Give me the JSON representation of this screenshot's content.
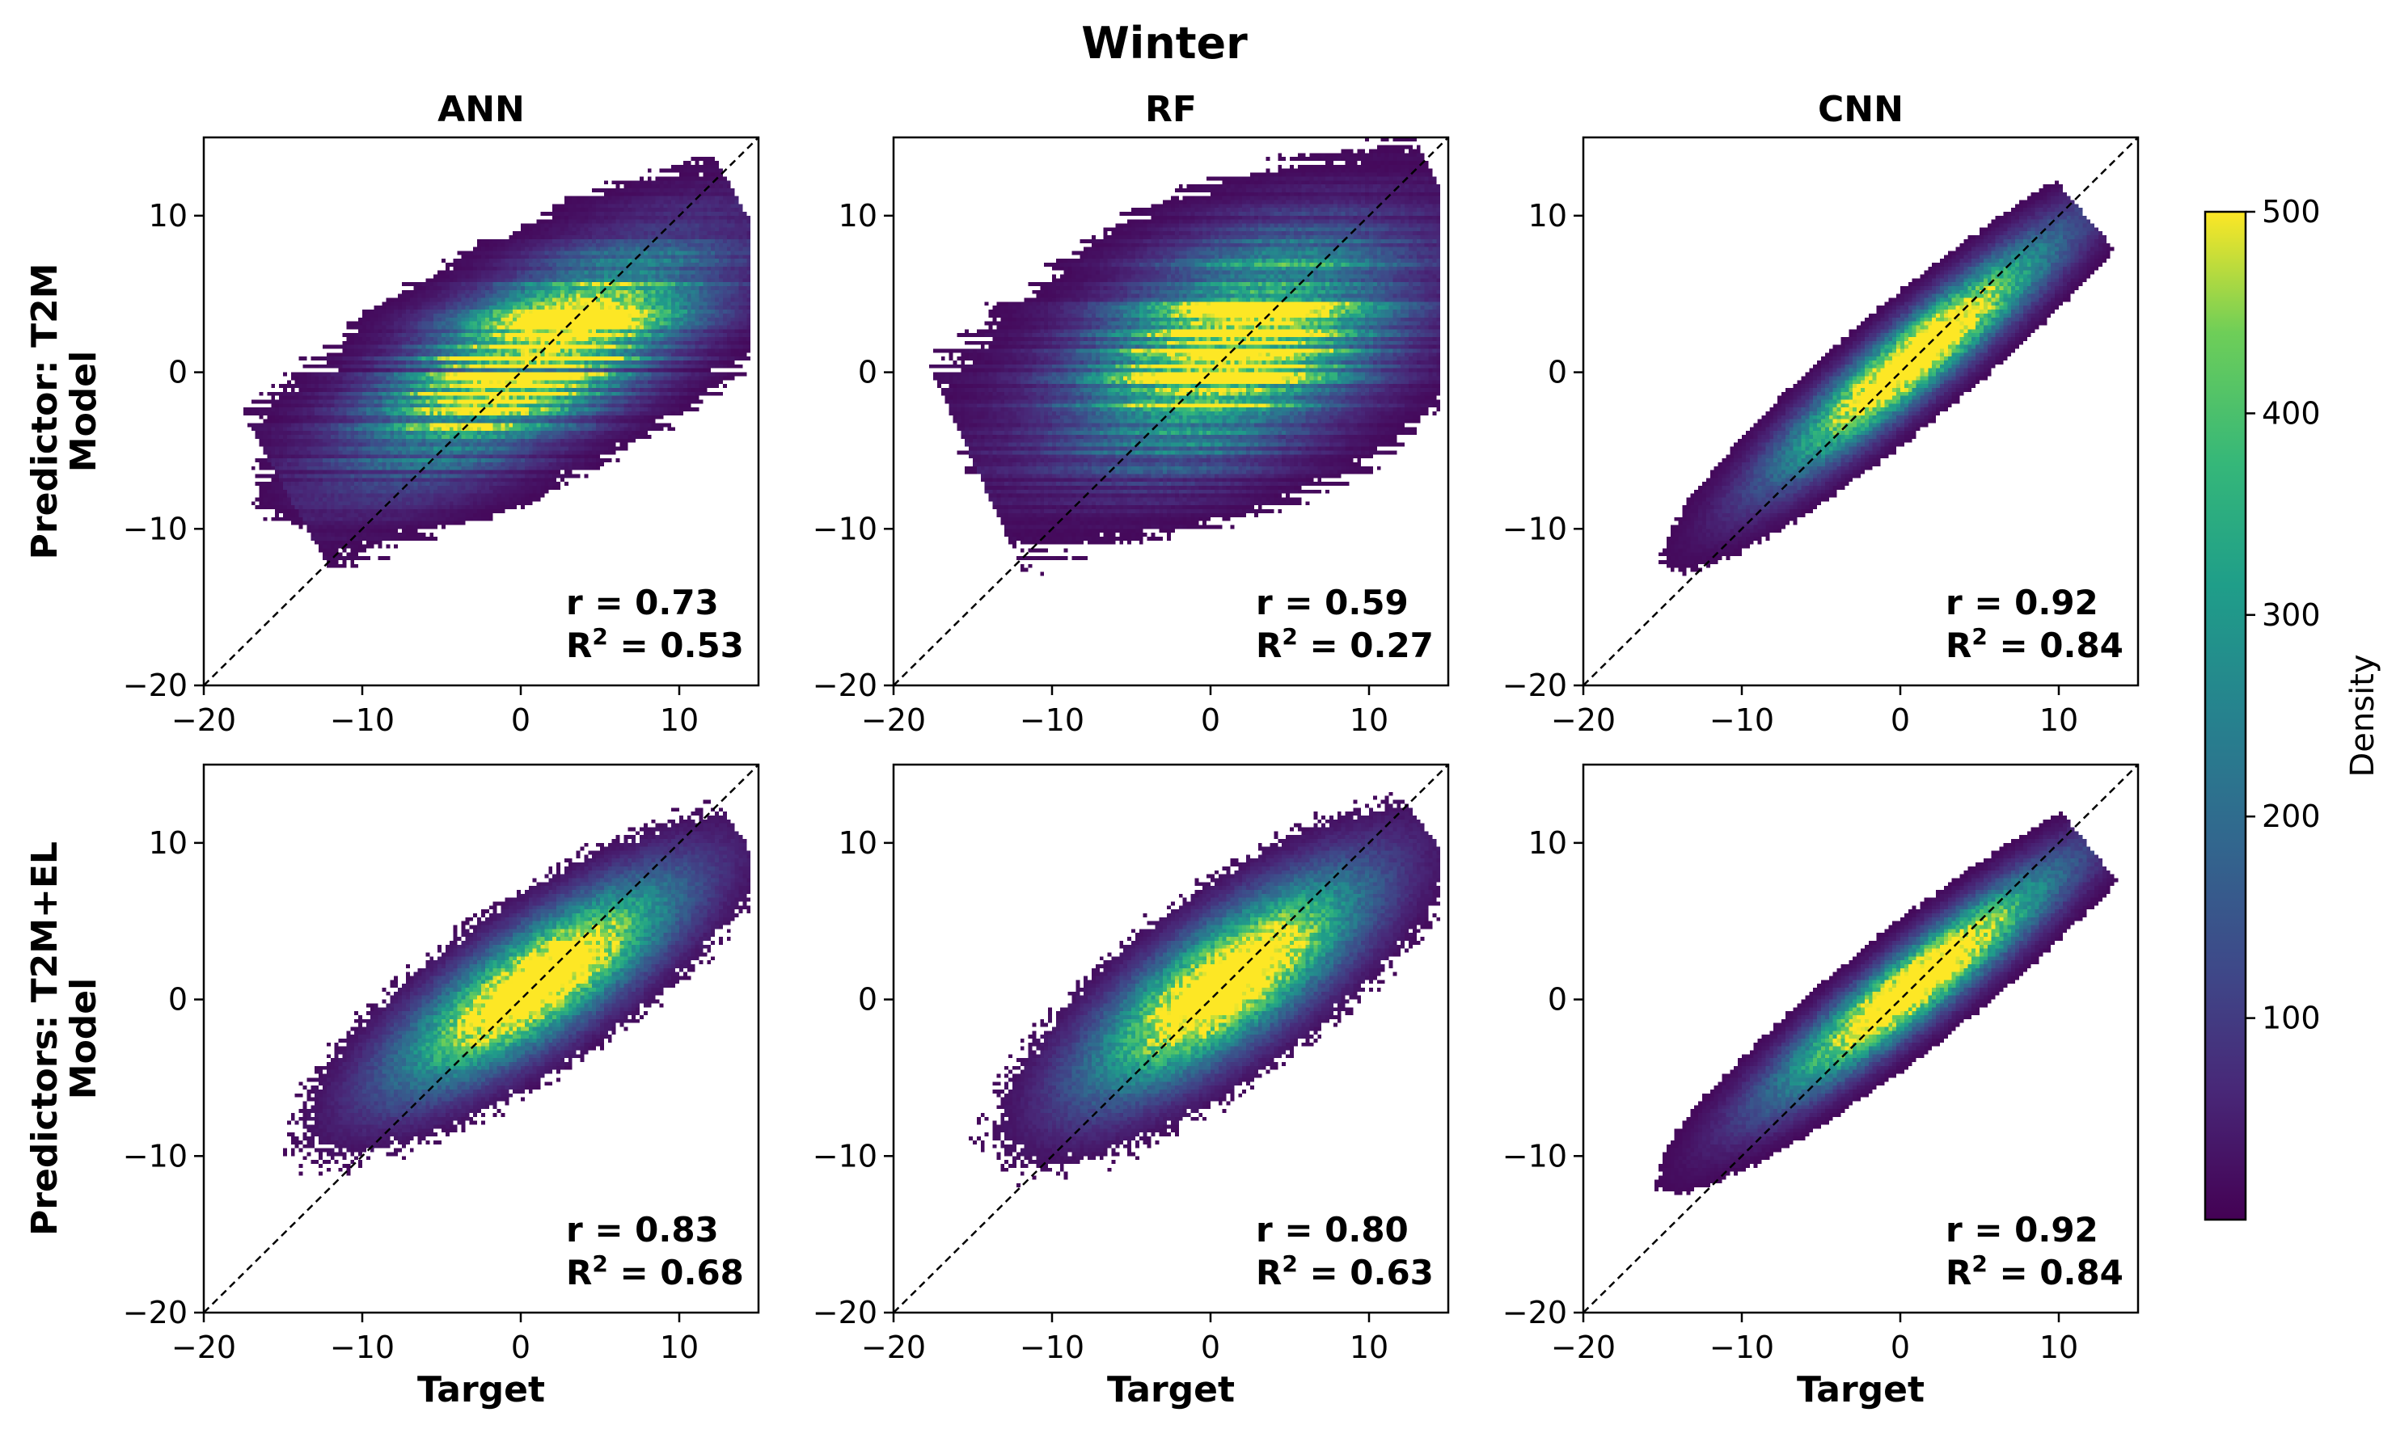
{
  "chart_data": {
    "type": "heatmap",
    "title": "Winter",
    "colorbar": {
      "label": "Density",
      "range": [
        0,
        500
      ],
      "ticks": [
        100,
        200,
        300,
        400,
        500
      ],
      "colormap": "viridis"
    },
    "xlim": [
      -20,
      15
    ],
    "ylim": [
      -20,
      15
    ],
    "xticks": [
      -20,
      -10,
      0,
      10
    ],
    "yticks": [
      -20,
      -10,
      0,
      10
    ],
    "xlabel": "Target",
    "reference_line": "1:1 dashed",
    "rows": [
      {
        "label": "Model",
        "predictor": "Predictor: T2M"
      },
      {
        "label": "Model",
        "predictor": "Predictors: T2M+EL"
      }
    ],
    "columns": [
      "ANN",
      "RF",
      "CNN"
    ],
    "panels": [
      {
        "row": 0,
        "col": 0,
        "model": "ANN",
        "r": "r = 0.73",
        "r2_prefix": "R",
        "r2_value": " = 0.53",
        "slope": 0.55,
        "spread_perp": 2.6,
        "spread_along": 6.5,
        "center": [
          1,
          1
        ],
        "style": "ann"
      },
      {
        "row": 0,
        "col": 1,
        "model": "RF",
        "r": "r = 0.59",
        "r2_prefix": "R",
        "r2_value": " = 0.27",
        "slope": 0.45,
        "spread_perp": 3.4,
        "spread_along": 6.0,
        "center": [
          1.5,
          1.5
        ],
        "style": "rf"
      },
      {
        "row": 0,
        "col": 2,
        "model": "CNN",
        "r": "r = 0.92",
        "r2_prefix": "R",
        "r2_value": " = 0.84",
        "slope": 0.85,
        "spread_perp": 1.3,
        "spread_along": 7.0,
        "center": [
          1,
          1
        ],
        "style": "cnn"
      },
      {
        "row": 1,
        "col": 0,
        "model": "ANN",
        "r": "r = 0.83",
        "r2_prefix": "R",
        "r2_value": " = 0.68",
        "slope": 0.7,
        "spread_perp": 2.0,
        "spread_along": 6.5,
        "center": [
          1,
          1
        ],
        "style": "smooth"
      },
      {
        "row": 1,
        "col": 1,
        "model": "RF",
        "r": "r = 0.80",
        "r2_prefix": "R",
        "r2_value": " = 0.63",
        "slope": 0.75,
        "spread_perp": 2.2,
        "spread_along": 6.5,
        "center": [
          1,
          1
        ],
        "style": "smooth"
      },
      {
        "row": 1,
        "col": 2,
        "model": "CNN",
        "r": "r = 0.92",
        "r2_prefix": "R",
        "r2_value": " = 0.84",
        "slope": 0.8,
        "spread_perp": 1.3,
        "spread_along": 7.0,
        "center": [
          1,
          1
        ],
        "style": "cnn"
      }
    ]
  }
}
